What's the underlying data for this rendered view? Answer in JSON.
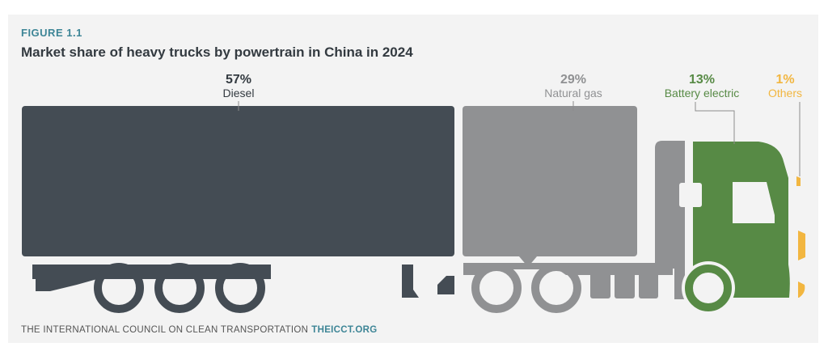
{
  "figure_label": "FIGURE 1.1",
  "title": "Market share of heavy trucks by powertrain in China in 2024",
  "footer": {
    "org": "THE INTERNATIONAL COUNCIL ON CLEAN TRANSPORTATION",
    "url": "THEICCT.ORG"
  },
  "colors": {
    "diesel": "#444c54",
    "natural_gas": "#909193",
    "battery_electric": "#578a45",
    "others": "#f2b640"
  },
  "chart_data": {
    "type": "bar",
    "orientation": "horizontal-stacked",
    "title": "Market share of heavy trucks by powertrain in China in 2024",
    "unit": "%",
    "categories": [
      "Diesel",
      "Natural gas",
      "Battery electric",
      "Others"
    ],
    "values": [
      57,
      29,
      13,
      1
    ],
    "labels": [
      "57%",
      "29%",
      "13%",
      "1%"
    ],
    "legend": "none",
    "grid": false
  }
}
